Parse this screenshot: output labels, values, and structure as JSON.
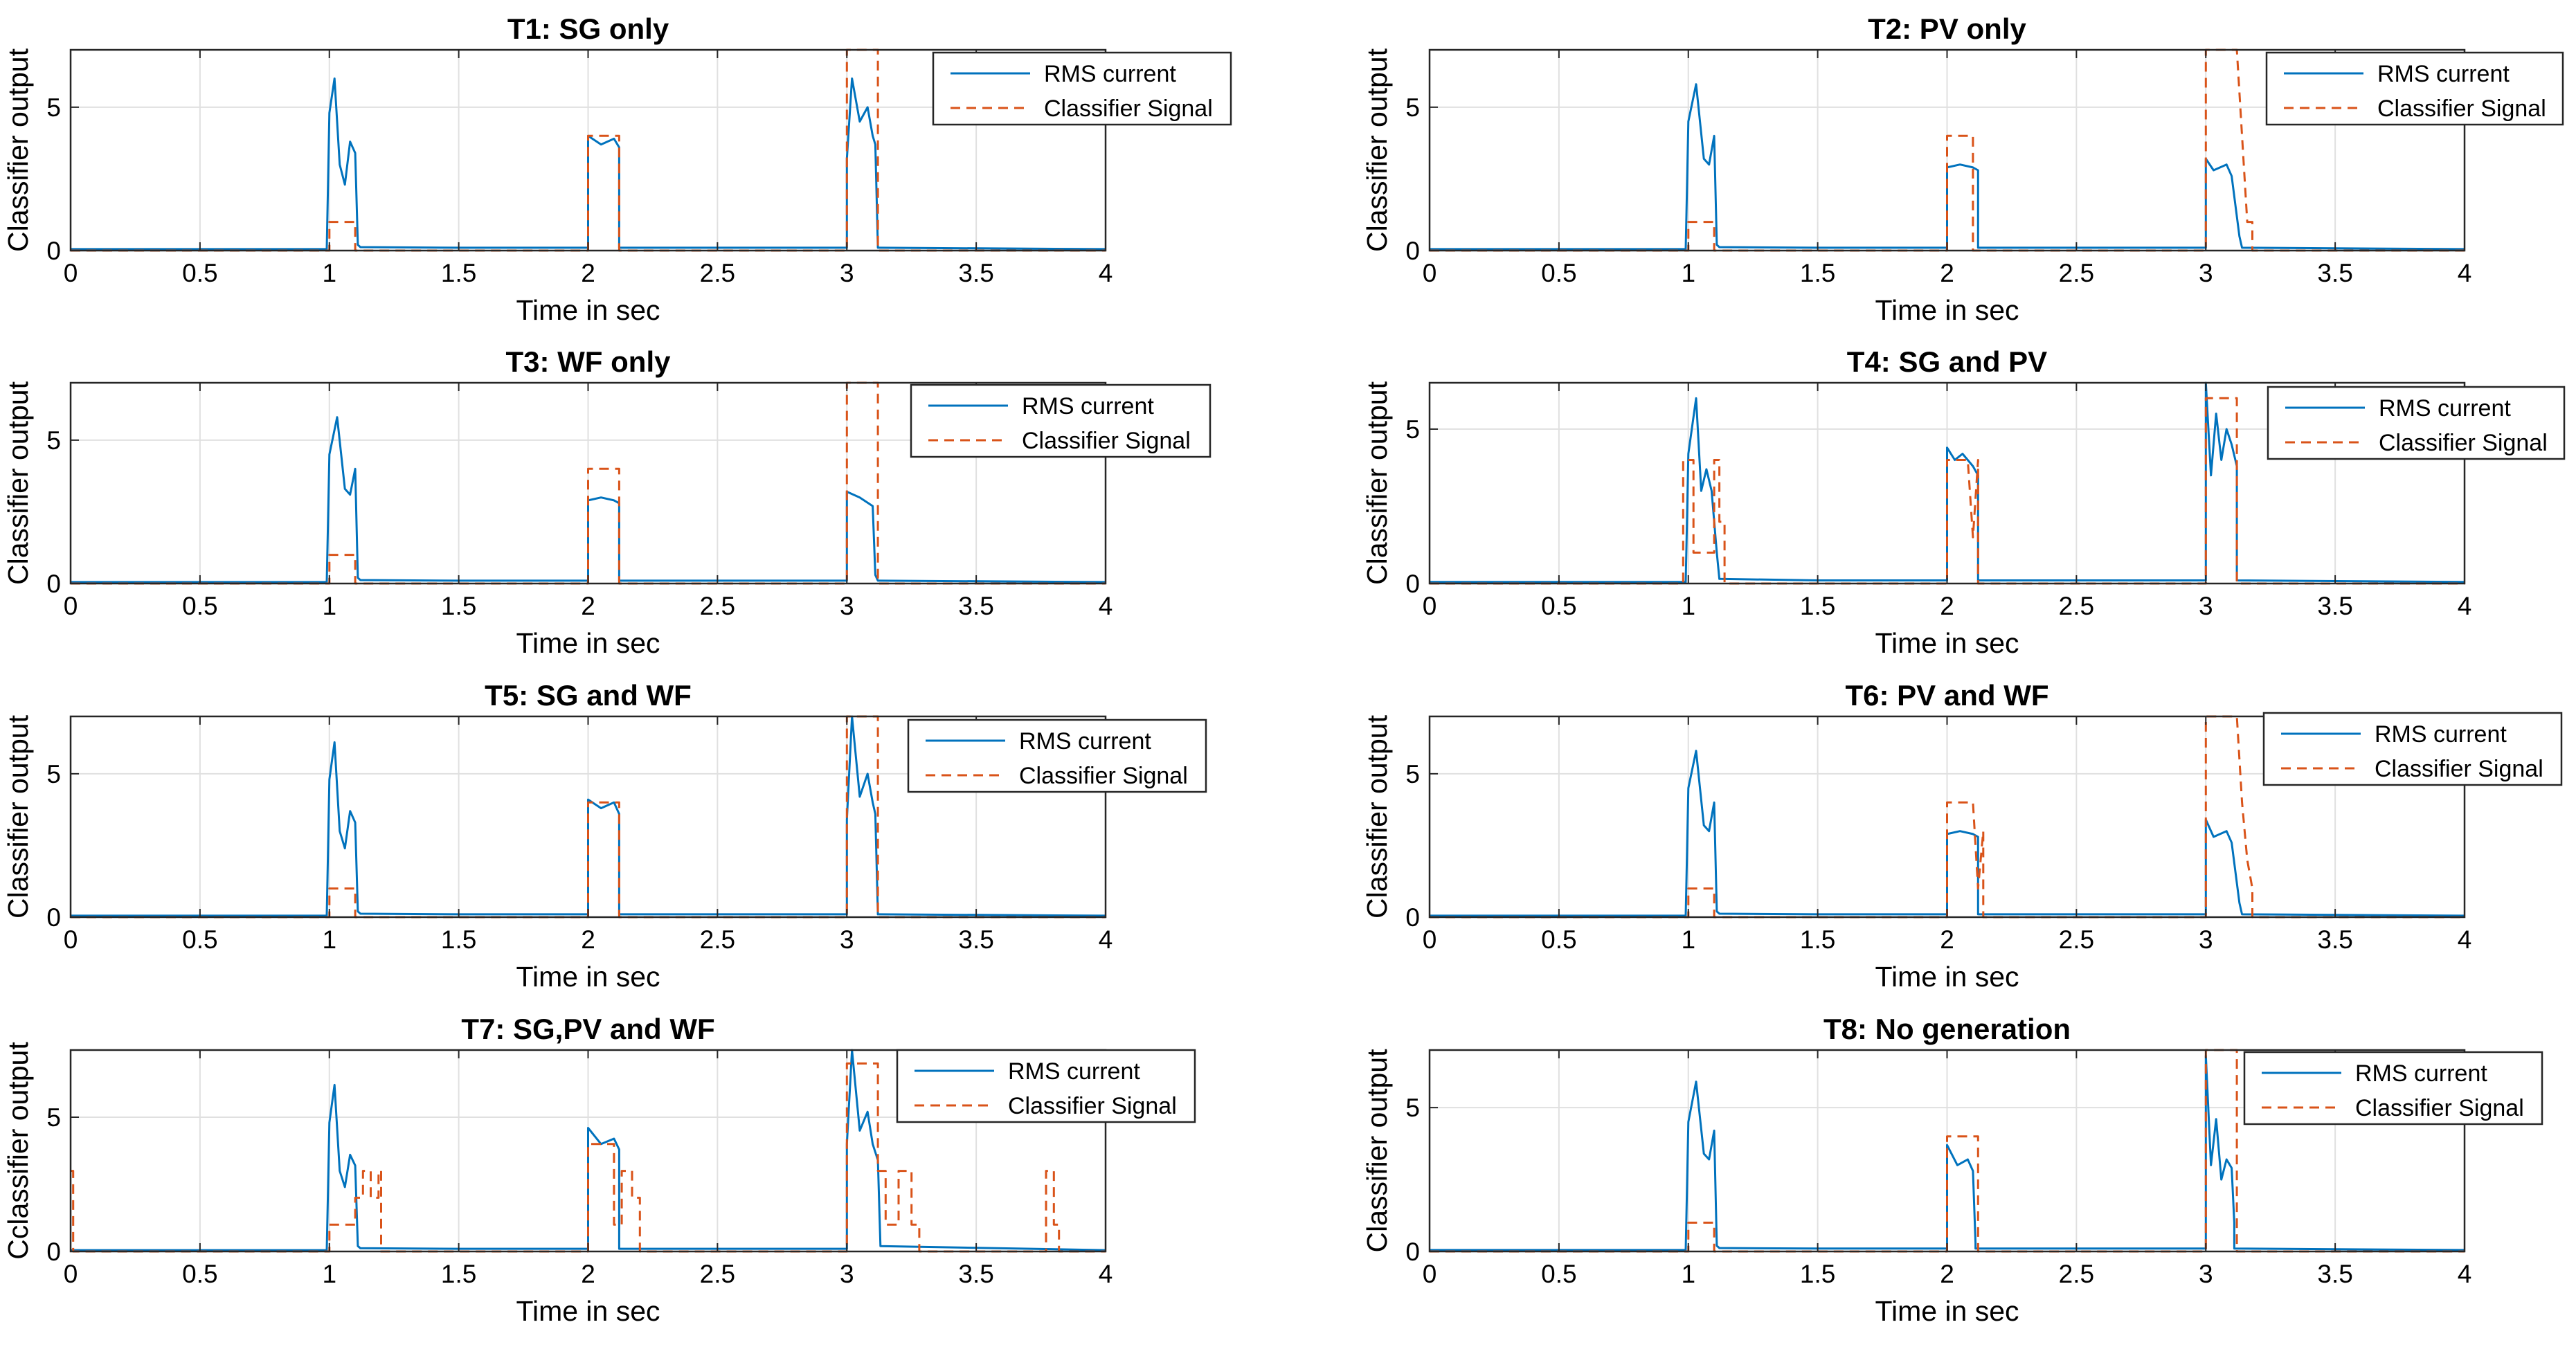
{
  "figure": {
    "colors": {
      "rms": "#0072BD",
      "classifier": "#D95319",
      "grid": "#e0e0e0",
      "axes": "#262626"
    },
    "legend_labels": [
      "RMS current",
      "Classifier Signal"
    ]
  },
  "chart_data": [
    {
      "type": "line",
      "title": "T1: SG only",
      "xlabel": "Time in sec",
      "ylabel": "Classifier output",
      "xlim": [
        0,
        4
      ],
      "ylim": [
        0,
        7
      ],
      "xticks": [
        0,
        0.5,
        1,
        1.5,
        2,
        2.5,
        3,
        3.5,
        4
      ],
      "xtick_labels": [
        "0",
        "0.5",
        "1",
        "1.5",
        "2",
        "2.5",
        "3",
        "3.5",
        "4"
      ],
      "yticks": [
        0,
        5
      ],
      "ytick_labels": [
        "0",
        "5"
      ],
      "grid": true,
      "legend": "top-right",
      "series": [
        {
          "name": "RMS current",
          "x": [
            0,
            0.99,
            1.0,
            1.02,
            1.04,
            1.06,
            1.08,
            1.1,
            1.11,
            1.12,
            1.5,
            2.0,
            2.0,
            2.05,
            2.1,
            2.12,
            2.12,
            3.0,
            3.0,
            3.02,
            3.05,
            3.08,
            3.1,
            3.11,
            3.12,
            4.0
          ],
          "y": [
            0.05,
            0.05,
            4.8,
            6.0,
            3.0,
            2.3,
            3.8,
            3.4,
            0.2,
            0.12,
            0.1,
            0.1,
            4.0,
            3.7,
            3.9,
            3.6,
            0.1,
            0.1,
            3.2,
            6.0,
            4.5,
            5.0,
            4.0,
            3.7,
            0.1,
            0.05
          ]
        },
        {
          "name": "Classifier Signal",
          "x": [
            0,
            1.0,
            1.0,
            1.1,
            1.1,
            2.0,
            2.0,
            2.12,
            2.12,
            3.0,
            3.0,
            3.12,
            3.12,
            4.0
          ],
          "y": [
            0,
            0,
            1,
            1,
            0,
            0,
            4,
            4,
            0,
            0,
            7,
            7,
            0,
            0
          ]
        }
      ]
    },
    {
      "type": "line",
      "title": "T2: PV only",
      "xlabel": "Time in sec",
      "ylabel": "Classifier output",
      "xlim": [
        0,
        4
      ],
      "ylim": [
        0,
        7
      ],
      "xticks": [
        0,
        0.5,
        1,
        1.5,
        2,
        2.5,
        3,
        3.5,
        4
      ],
      "xtick_labels": [
        "0",
        "0.5",
        "1",
        "1.5",
        "2",
        "2.5",
        "3",
        "3.5",
        "4"
      ],
      "yticks": [
        0,
        5
      ],
      "ytick_labels": [
        "0",
        "5"
      ],
      "grid": true,
      "legend": "top-right",
      "series": [
        {
          "name": "RMS current",
          "x": [
            0,
            0.99,
            1.0,
            1.03,
            1.06,
            1.08,
            1.1,
            1.11,
            1.12,
            1.5,
            2.0,
            2.0,
            2.05,
            2.1,
            2.12,
            2.12,
            3.0,
            3.0,
            3.03,
            3.08,
            3.1,
            3.13,
            3.14,
            4.0
          ],
          "y": [
            0.05,
            0.05,
            4.5,
            5.8,
            3.2,
            3.0,
            4.0,
            0.2,
            0.12,
            0.1,
            0.1,
            2.9,
            3.0,
            2.9,
            2.8,
            0.1,
            0.1,
            3.2,
            2.8,
            3.0,
            2.6,
            0.5,
            0.1,
            0.05
          ]
        },
        {
          "name": "Classifier Signal",
          "x": [
            0,
            1.0,
            1.0,
            1.1,
            1.1,
            2.0,
            2.0,
            2.1,
            2.1,
            3.0,
            3.0,
            3.12,
            3.14,
            3.16,
            3.18,
            3.18,
            4.0
          ],
          "y": [
            0,
            0,
            1,
            1,
            0,
            0,
            4,
            4,
            0,
            0,
            7,
            7,
            4,
            1,
            1,
            0,
            0
          ]
        }
      ]
    },
    {
      "type": "line",
      "title": "T3: WF only",
      "xlabel": "Time in sec",
      "ylabel": "Classifier output",
      "xlim": [
        0,
        4
      ],
      "ylim": [
        0,
        7
      ],
      "xticks": [
        0,
        0.5,
        1,
        1.5,
        2,
        2.5,
        3,
        3.5,
        4
      ],
      "xtick_labels": [
        "0",
        "0.5",
        "1",
        "1.5",
        "2",
        "2.5",
        "3",
        "3.5",
        "4"
      ],
      "yticks": [
        0,
        5
      ],
      "ytick_labels": [
        "0",
        "5"
      ],
      "grid": true,
      "legend": "top-right",
      "series": [
        {
          "name": "RMS current",
          "x": [
            0,
            0.99,
            1.0,
            1.03,
            1.06,
            1.08,
            1.1,
            1.11,
            1.12,
            1.5,
            2.0,
            2.0,
            2.05,
            2.1,
            2.12,
            2.12,
            3.0,
            3.0,
            3.05,
            3.1,
            3.11,
            3.12,
            4.0
          ],
          "y": [
            0.05,
            0.05,
            4.5,
            5.8,
            3.3,
            3.1,
            4.0,
            0.2,
            0.12,
            0.1,
            0.1,
            2.9,
            3.0,
            2.9,
            2.8,
            0.1,
            0.1,
            3.2,
            3.0,
            2.7,
            0.3,
            0.1,
            0.05
          ]
        },
        {
          "name": "Classifier Signal",
          "x": [
            0,
            1.0,
            1.0,
            1.1,
            1.1,
            2.0,
            2.0,
            2.12,
            2.12,
            3.0,
            3.0,
            3.12,
            3.12,
            4.0
          ],
          "y": [
            0,
            0,
            1,
            1,
            0,
            0,
            4,
            4,
            0,
            0,
            7,
            7,
            0,
            0
          ]
        }
      ]
    },
    {
      "type": "line",
      "title": "T4: SG and PV",
      "xlabel": "Time in sec",
      "ylabel": "Classifier output",
      "xlim": [
        0,
        4
      ],
      "ylim": [
        0,
        6.5
      ],
      "xticks": [
        0,
        0.5,
        1,
        1.5,
        2,
        2.5,
        3,
        3.5,
        4
      ],
      "xtick_labels": [
        "0",
        "0.5",
        "1",
        "1.5",
        "2",
        "2.5",
        "3",
        "3.5",
        "4"
      ],
      "yticks": [
        0,
        5
      ],
      "ytick_labels": [
        "0",
        "5"
      ],
      "grid": true,
      "legend": "top-right",
      "series": [
        {
          "name": "RMS current",
          "x": [
            0,
            0.99,
            1.0,
            1.03,
            1.05,
            1.07,
            1.09,
            1.11,
            1.12,
            1.5,
            2.0,
            2.0,
            2.03,
            2.06,
            2.1,
            2.12,
            2.12,
            3.0,
            3.0,
            3.02,
            3.04,
            3.06,
            3.08,
            3.1,
            3.12,
            3.12,
            4.0
          ],
          "y": [
            0.05,
            0.05,
            4.2,
            6.0,
            3.0,
            3.7,
            3.0,
            1.0,
            0.15,
            0.1,
            0.1,
            4.4,
            4.0,
            4.2,
            3.8,
            3.5,
            0.1,
            0.1,
            6.5,
            3.5,
            5.5,
            4.0,
            5.0,
            4.5,
            3.8,
            0.1,
            0.05
          ]
        },
        {
          "name": "Classifier Signal",
          "x": [
            0,
            0.98,
            0.98,
            1.02,
            1.02,
            1.1,
            1.1,
            1.12,
            1.12,
            1.14,
            1.14,
            1.16,
            1.16,
            2.0,
            2.0,
            2.08,
            2.1,
            2.12,
            2.12,
            3.0,
            3.0,
            3.12,
            3.12,
            4.0
          ],
          "y": [
            0,
            0,
            4,
            4,
            1,
            1,
            4,
            4,
            2,
            2,
            0,
            0,
            0,
            0,
            4,
            4,
            1.5,
            4,
            0,
            0,
            6,
            6,
            0,
            0
          ]
        }
      ]
    },
    {
      "type": "line",
      "title": "T5: SG and WF",
      "xlabel": "Time in sec",
      "ylabel": "Classifier output",
      "xlim": [
        0,
        4
      ],
      "ylim": [
        0,
        7
      ],
      "xticks": [
        0,
        0.5,
        1,
        1.5,
        2,
        2.5,
        3,
        3.5,
        4
      ],
      "xtick_labels": [
        "0",
        "0.5",
        "1",
        "1.5",
        "2",
        "2.5",
        "3",
        "3.5",
        "4"
      ],
      "yticks": [
        0,
        5
      ],
      "ytick_labels": [
        "0",
        "5"
      ],
      "grid": true,
      "legend": "top-right",
      "series": [
        {
          "name": "RMS current",
          "x": [
            0,
            0.99,
            1.0,
            1.02,
            1.04,
            1.06,
            1.08,
            1.1,
            1.11,
            1.12,
            1.5,
            2.0,
            2.0,
            2.05,
            2.1,
            2.12,
            2.12,
            3.0,
            3.0,
            3.02,
            3.05,
            3.08,
            3.1,
            3.11,
            3.12,
            4.0
          ],
          "y": [
            0.05,
            0.05,
            4.8,
            6.1,
            3.0,
            2.4,
            3.7,
            3.3,
            0.2,
            0.12,
            0.1,
            0.1,
            4.1,
            3.8,
            4.0,
            3.6,
            0.1,
            0.1,
            3.4,
            7.0,
            4.2,
            5.0,
            4.0,
            3.6,
            0.1,
            0.05
          ]
        },
        {
          "name": "Classifier Signal",
          "x": [
            0,
            1.0,
            1.0,
            1.1,
            1.1,
            2.0,
            2.0,
            2.12,
            2.12,
            3.0,
            3.0,
            3.12,
            3.12,
            4.0
          ],
          "y": [
            0,
            0,
            1,
            1,
            0,
            0,
            4,
            4,
            0,
            0,
            7,
            7,
            0,
            0
          ]
        }
      ]
    },
    {
      "type": "line",
      "title": "T6: PV and WF",
      "xlabel": "Time in sec",
      "ylabel": "Classifier output",
      "xlim": [
        0,
        4
      ],
      "ylim": [
        0,
        7
      ],
      "xticks": [
        0,
        0.5,
        1,
        1.5,
        2,
        2.5,
        3,
        3.5,
        4
      ],
      "xtick_labels": [
        "0",
        "0.5",
        "1",
        "1.5",
        "2",
        "2.5",
        "3",
        "3.5",
        "4"
      ],
      "yticks": [
        0,
        5
      ],
      "ytick_labels": [
        "0",
        "5"
      ],
      "grid": true,
      "legend": "top-right",
      "series": [
        {
          "name": "RMS current",
          "x": [
            0,
            0.99,
            1.0,
            1.03,
            1.06,
            1.08,
            1.1,
            1.11,
            1.12,
            1.5,
            2.0,
            2.0,
            2.05,
            2.1,
            2.12,
            2.12,
            3.0,
            3.0,
            3.03,
            3.08,
            3.1,
            3.13,
            3.14,
            4.0
          ],
          "y": [
            0.05,
            0.05,
            4.5,
            5.8,
            3.2,
            3.0,
            4.0,
            0.2,
            0.12,
            0.1,
            0.1,
            2.9,
            3.0,
            2.9,
            2.8,
            0.1,
            0.1,
            3.4,
            2.8,
            3.0,
            2.6,
            0.5,
            0.1,
            0.05
          ]
        },
        {
          "name": "Classifier Signal",
          "x": [
            0,
            1.0,
            1.0,
            1.1,
            1.1,
            2.0,
            2.0,
            2.1,
            2.12,
            2.14,
            2.14,
            3.0,
            3.0,
            3.12,
            3.14,
            3.16,
            3.18,
            3.18,
            4.0
          ],
          "y": [
            0,
            0,
            1,
            1,
            0,
            0,
            4,
            4,
            1,
            3,
            0,
            0,
            7,
            7,
            4,
            2,
            1,
            0,
            0
          ]
        }
      ]
    },
    {
      "type": "line",
      "title": "T7: SG,PV and WF",
      "xlabel": "Time in sec",
      "ylabel": "Cclassifier output",
      "xlim": [
        0,
        4
      ],
      "ylim": [
        0,
        7.5
      ],
      "xticks": [
        0,
        0.5,
        1,
        1.5,
        2,
        2.5,
        3,
        3.5,
        4
      ],
      "xtick_labels": [
        "0",
        "0.5",
        "1",
        "1.5",
        "2",
        "2.5",
        "3",
        "3.5",
        "4"
      ],
      "yticks": [
        0,
        5
      ],
      "ytick_labels": [
        "0",
        "5"
      ],
      "grid": true,
      "legend": "top-right",
      "series": [
        {
          "name": "RMS current",
          "x": [
            0,
            0.99,
            1.0,
            1.02,
            1.04,
            1.06,
            1.08,
            1.1,
            1.11,
            1.12,
            1.5,
            2.0,
            2.0,
            2.05,
            2.1,
            2.12,
            2.12,
            3.0,
            3.0,
            3.02,
            3.05,
            3.08,
            3.1,
            3.12,
            3.13,
            4.0
          ],
          "y": [
            0.05,
            0.05,
            4.8,
            6.2,
            3.0,
            2.4,
            3.6,
            3.2,
            0.2,
            0.12,
            0.1,
            0.1,
            4.6,
            4.0,
            4.2,
            3.8,
            0.1,
            0.1,
            4.0,
            7.5,
            4.5,
            5.2,
            4.0,
            3.4,
            0.2,
            0.05
          ]
        },
        {
          "name": "Classifier Signal",
          "x": [
            0,
            0.01,
            0.01,
            0.02,
            0.02,
            1.0,
            1.0,
            1.1,
            1.1,
            1.13,
            1.13,
            1.16,
            1.16,
            1.19,
            1.19,
            1.2,
            1.2,
            2.0,
            2.0,
            2.1,
            2.1,
            2.13,
            2.13,
            2.17,
            2.17,
            2.2,
            2.2,
            3.0,
            3.0,
            3.12,
            3.12,
            3.15,
            3.15,
            3.2,
            3.2,
            3.25,
            3.25,
            3.28,
            3.28,
            3.77,
            3.77,
            3.8,
            3.8,
            3.82,
            3.82,
            4.0
          ],
          "y": [
            3,
            3,
            0,
            0,
            0,
            0,
            1,
            1,
            2,
            2,
            3,
            3,
            2,
            2,
            3,
            3,
            0,
            0,
            4,
            4,
            1,
            1,
            3,
            3,
            2,
            2,
            0,
            0,
            7,
            7,
            3,
            3,
            1,
            1,
            3,
            3,
            1,
            1,
            0,
            0,
            3,
            3,
            1,
            1,
            0,
            0
          ]
        }
      ]
    },
    {
      "type": "line",
      "title": "T8: No generation",
      "xlabel": "Time in sec",
      "ylabel": "Classifier output",
      "xlim": [
        0,
        4
      ],
      "ylim": [
        0,
        7
      ],
      "xticks": [
        0,
        0.5,
        1,
        1.5,
        2,
        2.5,
        3,
        3.5,
        4
      ],
      "xtick_labels": [
        "0",
        "0.5",
        "1",
        "1.5",
        "2",
        "2.5",
        "3",
        "3.5",
        "4"
      ],
      "yticks": [
        0,
        5
      ],
      "ytick_labels": [
        "0",
        "5"
      ],
      "grid": true,
      "legend": "top-right",
      "series": [
        {
          "name": "RMS current",
          "x": [
            0,
            0.99,
            1.0,
            1.03,
            1.06,
            1.08,
            1.1,
            1.11,
            1.12,
            1.5,
            2.0,
            2.0,
            2.04,
            2.08,
            2.1,
            2.11,
            2.11,
            3.0,
            3.0,
            3.02,
            3.04,
            3.06,
            3.08,
            3.1,
            3.11,
            3.11,
            4.0
          ],
          "y": [
            0.05,
            0.05,
            4.5,
            5.9,
            3.4,
            3.2,
            4.2,
            0.2,
            0.12,
            0.1,
            0.1,
            3.7,
            3.0,
            3.2,
            2.8,
            0.3,
            0.1,
            0.1,
            6.8,
            3.0,
            4.6,
            2.5,
            3.2,
            2.9,
            1.0,
            0.1,
            0.05
          ]
        },
        {
          "name": "Classifier Signal",
          "x": [
            0,
            1.0,
            1.0,
            1.1,
            1.1,
            2.0,
            2.0,
            2.12,
            2.12,
            3.0,
            3.0,
            3.12,
            3.12,
            4.0
          ],
          "y": [
            0,
            0,
            1,
            1,
            0,
            0,
            4,
            4,
            0,
            0,
            7,
            7,
            0,
            0
          ]
        }
      ]
    }
  ]
}
